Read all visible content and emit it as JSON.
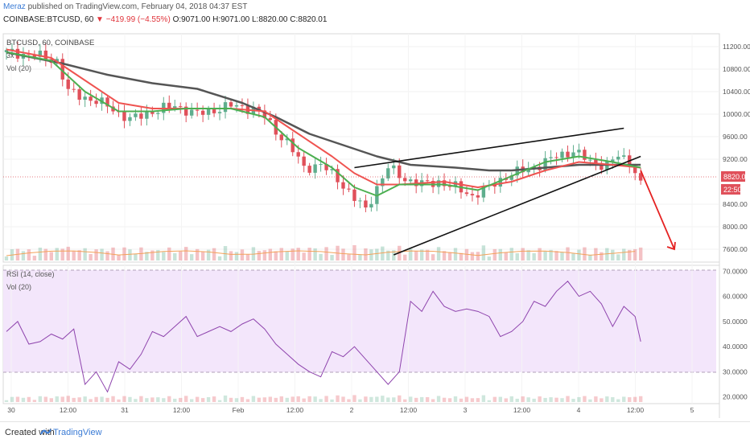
{
  "header": {
    "author": "Meraz",
    "published": "published on TradingView.com, February 04, 2018 04:37 EST",
    "symbol": "COINBASE:BTCUSD, 60",
    "change": "▼ −419.99 (−4.55%)",
    "o": "O:9071.00",
    "h": "H:9071.00",
    "l": "L:8820.00",
    "c": "C:8820.01"
  },
  "price_pane": {
    "series_title": "BTCUSD, 60, COINBASE",
    "indicator_1": "3x",
    "indicator_2": "Vol (20)",
    "ticks": [
      "11200.00",
      "10800.00",
      "10400.00",
      "10000.00",
      "9600.00",
      "9200.00",
      "8400.00",
      "8000.00",
      "7600.00"
    ],
    "last_price": "8820.01",
    "countdown": "22:50"
  },
  "rsi_pane": {
    "title": "RSI (14, close)",
    "vol_title": "Vol (20)",
    "ticks": [
      "70.0000",
      "60.0000",
      "50.0000",
      "40.0000",
      "30.0000",
      "20.0000"
    ]
  },
  "time_axis": [
    "30",
    "12:00",
    "31",
    "12:00",
    "Feb",
    "12:00",
    "2",
    "12:00",
    "3",
    "12:00",
    "4",
    "12:00",
    "5"
  ],
  "footer": {
    "created": "Created with",
    "brand": "TradingView"
  },
  "colors": {
    "up": "#5fae8e",
    "down": "#e0505a",
    "ema_fast": "#4caf50",
    "ema_mid": "#ef5350",
    "ema_slow": "#555555",
    "rsi_line": "#8e44ad",
    "rsi_band": "#f3e6fb",
    "last_price_label": "#e0505a",
    "projection_arrow": "#e52222",
    "vol_ma": "#f4a259"
  },
  "chart_data": {
    "type": "candlestick",
    "x_labels": [
      "30",
      "12:00",
      "31",
      "12:00",
      "Feb",
      "12:00",
      "2",
      "12:00",
      "3",
      "12:00",
      "4",
      "12:00",
      "5"
    ],
    "price_ylim": [
      7400,
      11400
    ],
    "close_path": [
      [
        0,
        11100
      ],
      [
        5,
        11050
      ],
      [
        9,
        10950
      ],
      [
        11,
        10400
      ],
      [
        14,
        10300
      ],
      [
        18,
        10150
      ],
      [
        22,
        9900
      ],
      [
        26,
        10050
      ],
      [
        30,
        10150
      ],
      [
        34,
        10000
      ],
      [
        38,
        10100
      ],
      [
        40,
        10150
      ],
      [
        44,
        10100
      ],
      [
        46,
        9950
      ],
      [
        48,
        9700
      ],
      [
        50,
        9500
      ],
      [
        53,
        9050
      ],
      [
        56,
        9100
      ],
      [
        59,
        8850
      ],
      [
        62,
        8500
      ],
      [
        64,
        8300
      ],
      [
        66,
        8700
      ],
      [
        68,
        9050
      ],
      [
        71,
        8850
      ],
      [
        74,
        8750
      ],
      [
        77,
        8800
      ],
      [
        80,
        8700
      ],
      [
        83,
        8550
      ],
      [
        86,
        8700
      ],
      [
        89,
        8900
      ],
      [
        92,
        9000
      ],
      [
        95,
        9100
      ],
      [
        98,
        9250
      ],
      [
        101,
        9350
      ],
      [
        104,
        9150
      ],
      [
        107,
        9100
      ],
      [
        109,
        9250
      ],
      [
        111,
        9150
      ],
      [
        113,
        8820
      ]
    ],
    "ema_fast": [
      [
        0,
        11100
      ],
      [
        8,
        10950
      ],
      [
        14,
        10400
      ],
      [
        20,
        10050
      ],
      [
        26,
        10050
      ],
      [
        32,
        10100
      ],
      [
        40,
        10100
      ],
      [
        46,
        9950
      ],
      [
        52,
        9400
      ],
      [
        58,
        9050
      ],
      [
        62,
        8700
      ],
      [
        66,
        8550
      ],
      [
        70,
        8750
      ],
      [
        78,
        8750
      ],
      [
        84,
        8650
      ],
      [
        90,
        8900
      ],
      [
        96,
        9150
      ],
      [
        102,
        9250
      ],
      [
        108,
        9150
      ],
      [
        113,
        9050
      ]
    ],
    "ema_mid": [
      [
        0,
        11150
      ],
      [
        8,
        11000
      ],
      [
        14,
        10600
      ],
      [
        20,
        10200
      ],
      [
        26,
        10100
      ],
      [
        32,
        10100
      ],
      [
        40,
        10100
      ],
      [
        46,
        10050
      ],
      [
        52,
        9650
      ],
      [
        58,
        9250
      ],
      [
        62,
        8950
      ],
      [
        66,
        8750
      ],
      [
        70,
        8750
      ],
      [
        78,
        8800
      ],
      [
        84,
        8700
      ],
      [
        90,
        8800
      ],
      [
        96,
        9000
      ],
      [
        102,
        9150
      ],
      [
        108,
        9100
      ],
      [
        113,
        9050
      ]
    ],
    "sma_slow": [
      [
        0,
        11100
      ],
      [
        10,
        10900
      ],
      [
        18,
        10700
      ],
      [
        26,
        10550
      ],
      [
        34,
        10450
      ],
      [
        42,
        10200
      ],
      [
        48,
        9950
      ],
      [
        54,
        9650
      ],
      [
        60,
        9450
      ],
      [
        66,
        9250
      ],
      [
        72,
        9100
      ],
      [
        80,
        9050
      ],
      [
        86,
        9000
      ],
      [
        90,
        9000
      ],
      [
        96,
        9050
      ],
      [
        102,
        9100
      ],
      [
        108,
        9100
      ],
      [
        113,
        9100
      ]
    ],
    "trendlines": [
      {
        "from": [
          62,
          9050
        ],
        "to": [
          110,
          9750
        ]
      },
      {
        "from": [
          69,
          7500
        ],
        "to": [
          113,
          9250
        ]
      }
    ],
    "projection_arrow": {
      "from": [
        113,
        9000
      ],
      "to": [
        119,
        7600
      ]
    },
    "rsi_ylim": [
      18,
      72
    ],
    "rsi": [
      [
        0,
        46
      ],
      [
        2,
        50
      ],
      [
        4,
        41
      ],
      [
        6,
        42
      ],
      [
        8,
        45
      ],
      [
        10,
        43
      ],
      [
        12,
        47
      ],
      [
        14,
        25
      ],
      [
        16,
        30
      ],
      [
        18,
        22
      ],
      [
        20,
        34
      ],
      [
        22,
        31
      ],
      [
        24,
        37
      ],
      [
        26,
        46
      ],
      [
        28,
        44
      ],
      [
        30,
        48
      ],
      [
        32,
        52
      ],
      [
        34,
        44
      ],
      [
        36,
        46
      ],
      [
        38,
        48
      ],
      [
        40,
        46
      ],
      [
        42,
        49
      ],
      [
        44,
        51
      ],
      [
        46,
        47
      ],
      [
        48,
        41
      ],
      [
        50,
        37
      ],
      [
        52,
        33
      ],
      [
        54,
        30
      ],
      [
        56,
        28
      ],
      [
        58,
        38
      ],
      [
        60,
        36
      ],
      [
        62,
        40
      ],
      [
        64,
        35
      ],
      [
        66,
        30
      ],
      [
        68,
        25
      ],
      [
        70,
        30
      ],
      [
        72,
        58
      ],
      [
        74,
        54
      ],
      [
        76,
        62
      ],
      [
        78,
        56
      ],
      [
        80,
        54
      ],
      [
        82,
        55
      ],
      [
        84,
        54
      ],
      [
        86,
        52
      ],
      [
        88,
        44
      ],
      [
        90,
        46
      ],
      [
        92,
        50
      ],
      [
        94,
        58
      ],
      [
        96,
        56
      ],
      [
        98,
        62
      ],
      [
        100,
        66
      ],
      [
        102,
        60
      ],
      [
        104,
        62
      ],
      [
        106,
        57
      ],
      [
        108,
        48
      ],
      [
        110,
        56
      ],
      [
        112,
        52
      ],
      [
        113,
        42
      ]
    ],
    "rsi_levels": [
      70,
      30
    ]
  }
}
